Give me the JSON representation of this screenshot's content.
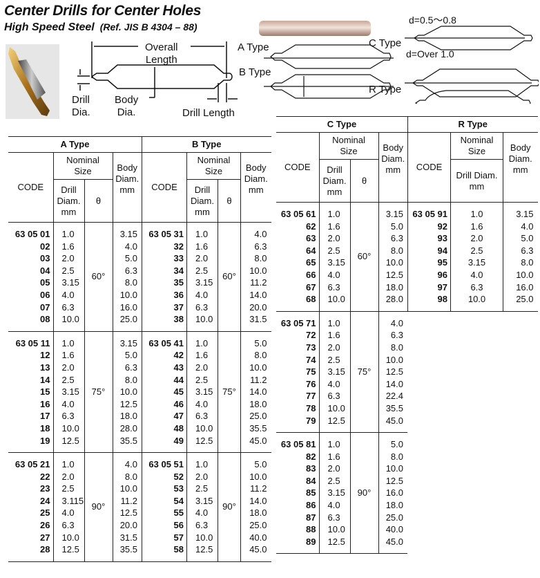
{
  "header": {
    "title": "Center Drills for Center Holes",
    "subtitle": "High Speed Steel",
    "reference": "(Ref. JIS B 4304 – 88)"
  },
  "diagram": {
    "overall_length": "Overall\nLength",
    "drill_dia": "Drill\nDia.",
    "body_dia": "Body\nDia.",
    "drill_length": "Drill Length",
    "a_type": "A Type",
    "b_type": "B Type",
    "c_type": "C Type",
    "r_type": "R Type",
    "c_note_small": "d=0.5～0.8",
    "c_note_large": "d=Over  1.0"
  },
  "columns": {
    "nominal": "Nominal\nSize",
    "code": "CODE",
    "drill": "Drill\nDiam.\nmm",
    "drill_r": "Drill Diam.\nmm",
    "theta": "θ",
    "body": "Body\nDiam.\nmm"
  },
  "tables": [
    {
      "title": "A Type",
      "groups": [
        {
          "theta": "60°",
          "rows": [
            [
              "63 05 01",
              "1.0",
              "3.15"
            ],
            [
              "02",
              "1.6",
              "4.0"
            ],
            [
              "03",
              "2.0",
              "5.0"
            ],
            [
              "04",
              "2.5",
              "6.3"
            ],
            [
              "05",
              "3.15",
              "8.0"
            ],
            [
              "06",
              "4.0",
              "10.0"
            ],
            [
              "07",
              "6.3",
              "16.0"
            ],
            [
              "08",
              "10.0",
              "25.0"
            ]
          ]
        },
        {
          "theta": "75°",
          "rows": [
            [
              "63 05 11",
              "1.0",
              "3.15"
            ],
            [
              "12",
              "1.6",
              "5.0"
            ],
            [
              "13",
              "2.0",
              "6.3"
            ],
            [
              "14",
              "2.5",
              "8.0"
            ],
            [
              "15",
              "3.15",
              "10.0"
            ],
            [
              "16",
              "4.0",
              "12.5"
            ],
            [
              "17",
              "6.3",
              "18.0"
            ],
            [
              "18",
              "10.0",
              "28.0"
            ],
            [
              "19",
              "12.5",
              "35.5"
            ]
          ]
        },
        {
          "theta": "90°",
          "rows": [
            [
              "63 05 21",
              "1.0",
              "4.0"
            ],
            [
              "22",
              "2.0",
              "8.0"
            ],
            [
              "23",
              "2.5",
              "10.0"
            ],
            [
              "24",
              "3.115",
              "11.2"
            ],
            [
              "25",
              "4.0",
              "12.5"
            ],
            [
              "26",
              "6.3",
              "20.0"
            ],
            [
              "27",
              "10.0",
              "31.5"
            ],
            [
              "28",
              "12.5",
              "35.5"
            ]
          ]
        }
      ]
    },
    {
      "title": "B Type",
      "groups": [
        {
          "theta": "60°",
          "rows": [
            [
              "63 05 31",
              "1.0",
              "4.0"
            ],
            [
              "32",
              "1.6",
              "6.3"
            ],
            [
              "33",
              "2.0",
              "8.0"
            ],
            [
              "34",
              "2.5",
              "10.0"
            ],
            [
              "35",
              "3.15",
              "11.2"
            ],
            [
              "36",
              "4.0",
              "14.0"
            ],
            [
              "37",
              "6.3",
              "20.0"
            ],
            [
              "38",
              "10.0",
              "31.5"
            ]
          ]
        },
        {
          "theta": "75°",
          "rows": [
            [
              "63 05 41",
              "1.0",
              "5.0"
            ],
            [
              "42",
              "1.6",
              "8.0"
            ],
            [
              "43",
              "2.0",
              "10.0"
            ],
            [
              "44",
              "2.5",
              "11.2"
            ],
            [
              "45",
              "3.15",
              "14.0"
            ],
            [
              "46",
              "4.0",
              "18.0"
            ],
            [
              "47",
              "6.3",
              "25.0"
            ],
            [
              "48",
              "10.0",
              "35.5"
            ],
            [
              "49",
              "12.5",
              "45.0"
            ]
          ]
        },
        {
          "theta": "90°",
          "rows": [
            [
              "63 05 51",
              "1.0",
              "5.0"
            ],
            [
              "52",
              "2.0",
              "10.0"
            ],
            [
              "53",
              "2.5",
              "11.2"
            ],
            [
              "54",
              "3.15",
              "14.0"
            ],
            [
              "55",
              "4.0",
              "18.0"
            ],
            [
              "56",
              "6.3",
              "25.0"
            ],
            [
              "57",
              "10.0",
              "40.0"
            ],
            [
              "58",
              "12.5",
              "45.0"
            ]
          ]
        }
      ]
    },
    {
      "title": "C Type",
      "groups": [
        {
          "theta": "60°",
          "rows": [
            [
              "63 05 61",
              "1.0",
              "3.15"
            ],
            [
              "62",
              "1.6",
              "5.0"
            ],
            [
              "63",
              "2.0",
              "6.3"
            ],
            [
              "64",
              "2.5",
              "8.0"
            ],
            [
              "65",
              "3.15",
              "10.0"
            ],
            [
              "66",
              "4.0",
              "12.5"
            ],
            [
              "67",
              "6.3",
              "18.0"
            ],
            [
              "68",
              "10.0",
              "28.0"
            ]
          ]
        },
        {
          "theta": "75°",
          "rows": [
            [
              "63 05 71",
              "1.0",
              "4.0"
            ],
            [
              "72",
              "1.6",
              "6.3"
            ],
            [
              "73",
              "2.0",
              "8.0"
            ],
            [
              "74",
              "2.5",
              "10.0"
            ],
            [
              "75",
              "3.15",
              "12.5"
            ],
            [
              "76",
              "4.0",
              "14.0"
            ],
            [
              "77",
              "6.3",
              "22.4"
            ],
            [
              "78",
              "10.0",
              "35.5"
            ],
            [
              "79",
              "12.5",
              "45.0"
            ]
          ]
        },
        {
          "theta": "90°",
          "rows": [
            [
              "63 05 81",
              "1.0",
              "5.0"
            ],
            [
              "82",
              "1.6",
              "8.0"
            ],
            [
              "83",
              "2.0",
              "10.0"
            ],
            [
              "84",
              "2.5",
              "12.5"
            ],
            [
              "85",
              "3.15",
              "16.0"
            ],
            [
              "86",
              "4.0",
              "18.0"
            ],
            [
              "87",
              "6.3",
              "25.0"
            ],
            [
              "88",
              "10.0",
              "40.0"
            ],
            [
              "89",
              "12.5",
              "45.0"
            ]
          ]
        }
      ]
    },
    {
      "title": "R Type",
      "groups": [
        {
          "rows": [
            [
              "63 05 91",
              "1.0",
              "3.15"
            ],
            [
              "92",
              "1.6",
              "4.0"
            ],
            [
              "93",
              "2.0",
              "5.0"
            ],
            [
              "94",
              "2.5",
              "6.3"
            ],
            [
              "95",
              "3.15",
              "8.0"
            ],
            [
              "96",
              "4.0",
              "10.0"
            ],
            [
              "97",
              "6.3",
              "16.0"
            ],
            [
              "98",
              "10.0",
              "25.0"
            ]
          ]
        }
      ]
    }
  ]
}
